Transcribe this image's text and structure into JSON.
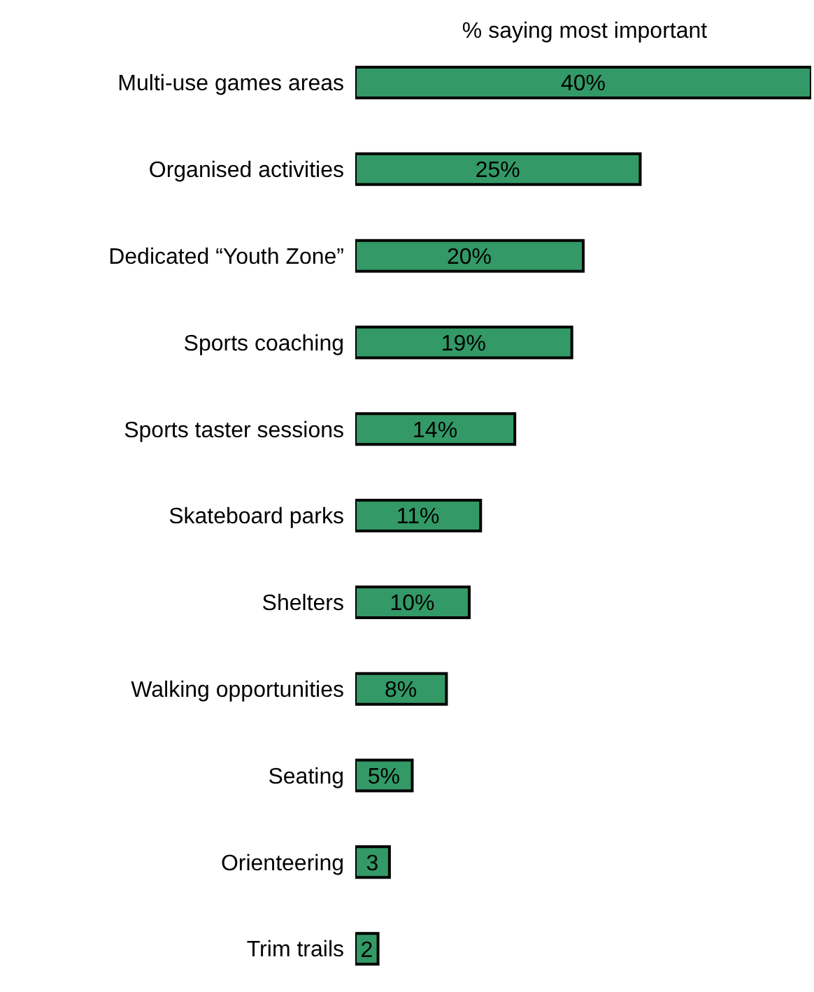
{
  "chart_data": {
    "type": "bar",
    "orientation": "horizontal",
    "title": "% saying most important",
    "categories": [
      "Multi-use games areas",
      "Organised activities",
      "Dedicated “Youth Zone”",
      "Sports coaching",
      "Sports taster sessions",
      "Skateboard parks",
      "Shelters",
      "Walking opportunities",
      "Seating",
      "Orienteering",
      "Trim trails"
    ],
    "values": [
      40,
      25,
      20,
      19,
      14,
      11,
      10,
      8,
      5,
      3,
      2
    ],
    "value_labels": [
      "40%",
      "25%",
      "20%",
      "19%",
      "14%",
      "11%",
      "10%",
      "8%",
      "5%",
      "3",
      "2"
    ],
    "color": "#339966",
    "xlim": [
      0,
      40
    ],
    "grid": false,
    "tick_labels": "y"
  }
}
